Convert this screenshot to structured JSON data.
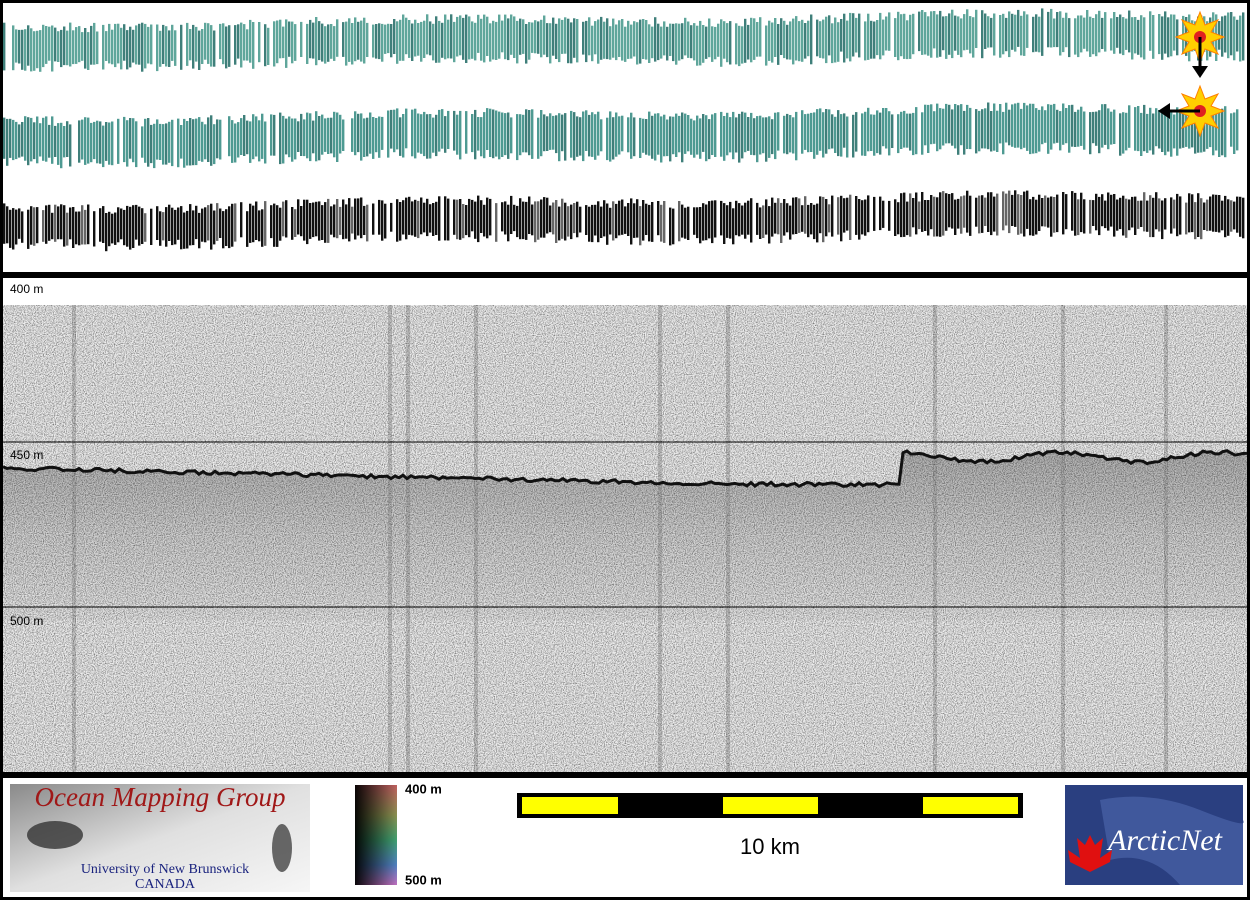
{
  "profile": {
    "depth_labels": [
      "400 m",
      "450 m",
      "500 m"
    ]
  },
  "footer": {
    "logo_left": {
      "title": "Ocean Mapping Group",
      "subtitle": "University of New Brunswick",
      "country": "CANADA"
    },
    "colorbar": {
      "top": "400 m",
      "bottom": "500 m"
    },
    "scale_bar": {
      "label": "10 km"
    },
    "logo_right": {
      "label": "ArcticNet"
    }
  }
}
